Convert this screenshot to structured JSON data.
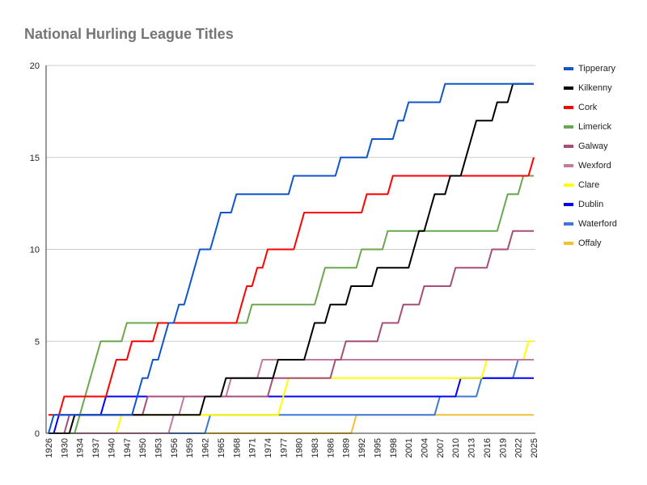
{
  "chart_data": {
    "type": "line",
    "title": "National Hurling League Titles",
    "xlabel": "",
    "ylabel": "",
    "ylim": [
      0,
      20
    ],
    "yticks": [
      0,
      5,
      10,
      15,
      20
    ],
    "grid": true,
    "legend_position": "right",
    "x_missing_years": [
      1927,
      1932,
      1942,
      1943,
      1944,
      1945
    ],
    "x_range": [
      1926,
      2025
    ],
    "xtick_labels": [
      "1926",
      "1930",
      "1934",
      "1937",
      "1940",
      "1947",
      "1950",
      "1953",
      "1956",
      "1959",
      "1962",
      "1965",
      "1968",
      "1971",
      "1974",
      "1977",
      "1980",
      "1983",
      "1986",
      "1989",
      "1992",
      "1995",
      "1998",
      "2001",
      "2004",
      "2007",
      "2010",
      "2013",
      "2016",
      "2019",
      "2022",
      "2025"
    ],
    "series": [
      {
        "name": "Tipperary",
        "color": "#1155cc",
        "title_years": [
          1928,
          1949,
          1950,
          1952,
          1954,
          1955,
          1957,
          1959,
          1960,
          1961,
          1964,
          1965,
          1968,
          1979,
          1988,
          1994,
          1999,
          2001,
          2008
        ]
      },
      {
        "name": "Kilkenny",
        "color": "#000000",
        "title_years": [
          1933,
          1962,
          1966,
          1976,
          1982,
          1983,
          1986,
          1990,
          1995,
          2002,
          2003,
          2005,
          2006,
          2009,
          2012,
          2013,
          2014,
          2018,
          2021
        ]
      },
      {
        "name": "Cork",
        "color": "#ff0000",
        "title_years": [
          1926,
          1930,
          1940,
          1941,
          1948,
          1953,
          1969,
          1970,
          1972,
          1974,
          1980,
          1981,
          1993,
          1998,
          2025
        ]
      },
      {
        "name": "Limerick",
        "color": "#6aa84f",
        "title_years": [
          1934,
          1935,
          1936,
          1937,
          1938,
          1947,
          1971,
          1984,
          1985,
          1992,
          1997,
          2019,
          2020,
          2023
        ]
      },
      {
        "name": "Galway",
        "color": "#a64d79",
        "title_years": [
          1931,
          1951,
          1975,
          1987,
          1989,
          1996,
          2000,
          2004,
          2010,
          2017,
          2021
        ]
      },
      {
        "name": "Wexford",
        "color": "#c27ba0",
        "title_years": [
          1956,
          1958,
          1967,
          1973
        ]
      },
      {
        "name": "Clare",
        "color": "#ffff00",
        "title_years": [
          1946,
          1977,
          1978,
          2016,
          2024
        ]
      },
      {
        "name": "Dublin",
        "color": "#0000ff",
        "title_years": [
          1929,
          1939,
          2011
        ]
      },
      {
        "name": "Waterford",
        "color": "#3c78d8",
        "title_years": [
          1963,
          2007,
          2015,
          2022
        ]
      },
      {
        "name": "Offaly",
        "color": "#f1c232",
        "title_years": [
          1991
        ]
      }
    ]
  }
}
